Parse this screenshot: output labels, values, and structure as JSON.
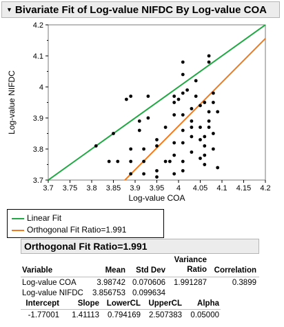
{
  "report": {
    "title": "Bivariate Fit of Log-value NIFDC By Log-value COA",
    "section_title": "Orthogonal Fit Ratio=1.991"
  },
  "legend": [
    {
      "label": "Linear Fit",
      "color": "#22a844"
    },
    {
      "label": "Orthogonal Fit Ratio=1.991",
      "color": "#f07b1e"
    }
  ],
  "stats_table": {
    "headers": {
      "variable": "Variable",
      "mean": "Mean",
      "std_dev": "Std Dev",
      "variance_ratio_1": "Variance",
      "variance_ratio_2": "Ratio",
      "correlation": "Correlation"
    },
    "rows": [
      {
        "variable": "Log-value COA",
        "mean": "3.98742",
        "std_dev": "0.070606",
        "variance_ratio": "1.991287",
        "correlation": "0.3899"
      },
      {
        "variable": "Log-value NIFDC",
        "mean": "3.856753",
        "std_dev": "0.099634",
        "variance_ratio": "",
        "correlation": ""
      }
    ]
  },
  "fit_table": {
    "headers": {
      "intercept": "Intercept",
      "slope": "Slope",
      "lowercl": "LowerCL",
      "uppercl": "UpperCL",
      "alpha": "Alpha"
    },
    "row": {
      "intercept": "-1.77001",
      "slope": "1.41113",
      "lowercl": "0.794169",
      "uppercl": "2.507383",
      "alpha": "0.05000"
    }
  },
  "chart_data": {
    "type": "scatter",
    "title": "",
    "xlabel": "Log-value COA",
    "ylabel": "Log-value NIFDC",
    "xlim": [
      3.7,
      4.2
    ],
    "ylim": [
      3.7,
      4.2
    ],
    "xticks": [
      "3.7",
      "3.75",
      "3.8",
      "3.85",
      "3.9",
      "3.95",
      "4",
      "4.05",
      "4.1",
      "4.15",
      "4.2"
    ],
    "yticks": [
      "3.7",
      "3.8",
      "3.9",
      "4",
      "4.1",
      "4.2"
    ],
    "grid": false,
    "marker_color": "#000000",
    "points": [
      [
        3.81,
        3.81
      ],
      [
        3.84,
        3.76
      ],
      [
        3.86,
        3.76
      ],
      [
        3.85,
        3.85
      ],
      [
        3.88,
        3.96
      ],
      [
        3.89,
        3.8
      ],
      [
        3.89,
        3.76
      ],
      [
        3.89,
        3.72
      ],
      [
        3.89,
        3.97
      ],
      [
        3.91,
        3.86
      ],
      [
        3.91,
        3.89
      ],
      [
        3.92,
        3.8
      ],
      [
        3.92,
        3.76
      ],
      [
        3.92,
        3.72
      ],
      [
        3.93,
        3.9
      ],
      [
        3.93,
        3.97
      ],
      [
        3.95,
        3.73
      ],
      [
        3.95,
        3.71
      ],
      [
        3.95,
        3.81
      ],
      [
        3.95,
        3.83
      ],
      [
        3.97,
        3.87
      ],
      [
        3.97,
        3.76
      ],
      [
        3.98,
        3.76
      ],
      [
        3.99,
        3.95
      ],
      [
        3.99,
        3.97
      ],
      [
        3.99,
        3.91
      ],
      [
        3.99,
        3.82
      ],
      [
        3.99,
        3.78
      ],
      [
        3.99,
        3.72
      ],
      [
        4.0,
        3.96
      ],
      [
        4.01,
        4.08
      ],
      [
        4.01,
        4.04
      ],
      [
        4.01,
        3.98
      ],
      [
        4.01,
        3.91
      ],
      [
        4.01,
        3.86
      ],
      [
        4.01,
        3.82
      ],
      [
        4.01,
        3.76
      ],
      [
        4.01,
        3.73
      ],
      [
        4.02,
        3.99
      ],
      [
        4.03,
        3.93
      ],
      [
        4.03,
        3.89
      ],
      [
        4.03,
        3.87
      ],
      [
        4.03,
        3.84
      ],
      [
        4.03,
        3.79
      ],
      [
        4.04,
        4.02
      ],
      [
        4.04,
        3.97
      ],
      [
        4.05,
        3.94
      ],
      [
        4.05,
        3.87
      ],
      [
        4.05,
        3.83
      ],
      [
        4.05,
        3.77
      ],
      [
        4.06,
        3.84
      ],
      [
        4.06,
        3.81
      ],
      [
        4.06,
        3.78
      ],
      [
        4.06,
        3.75
      ],
      [
        4.06,
        3.95
      ],
      [
        4.07,
        3.92
      ],
      [
        4.07,
        3.89
      ],
      [
        4.07,
        3.87
      ],
      [
        4.07,
        4.1
      ],
      [
        4.07,
        4.08
      ],
      [
        4.08,
        3.98
      ],
      [
        4.08,
        3.95
      ],
      [
        4.08,
        3.85
      ],
      [
        4.08,
        3.8
      ],
      [
        4.09,
        3.92
      ],
      [
        4.09,
        3.74
      ]
    ],
    "lines": [
      {
        "name": "Linear Fit",
        "color": "#22a844",
        "x": [
          3.7,
          4.2
        ],
        "y": [
          3.7,
          4.2
        ]
      },
      {
        "name": "Orthogonal Fit Ratio=1.991",
        "color": "#f07b1e",
        "x": [
          3.8708,
          4.2
        ],
        "y": [
          3.692,
          4.156
        ]
      }
    ]
  }
}
